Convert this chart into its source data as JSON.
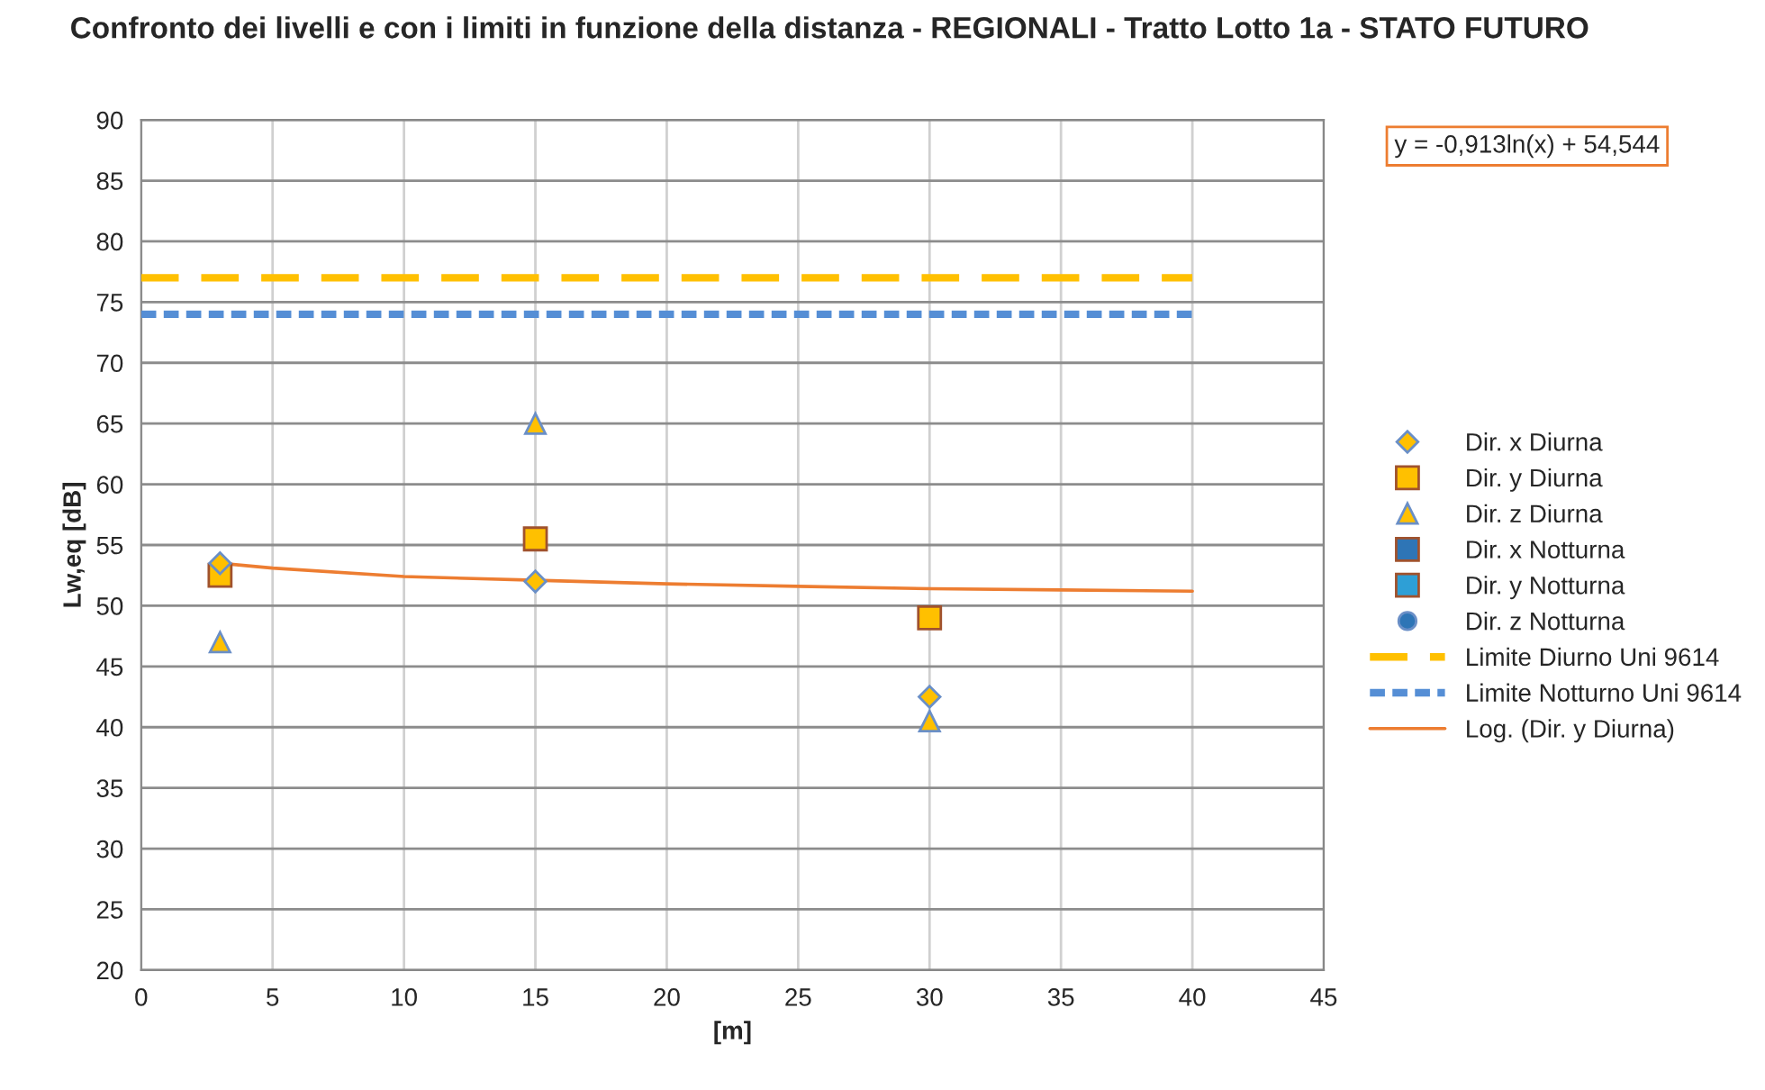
{
  "chart_data": {
    "type": "scatter",
    "title": "Confronto dei livelli e con i limiti in funzione della distanza - REGIONALI - Tratto Lotto 1a - STATO FUTURO",
    "xlabel": "[m]",
    "ylabel": "Lw,eq [dB]",
    "x": [
      3,
      15,
      30
    ],
    "series": [
      {
        "name": "Dir. x Diurna",
        "color": "#ffc000",
        "marker": "diamond",
        "values": [
          53.5,
          52,
          42.5
        ]
      },
      {
        "name": "Dir. y Diurna",
        "color": "#ffc000",
        "marker": "square",
        "values": [
          52.5,
          55.5,
          49
        ]
      },
      {
        "name": "Dir. z Diurna",
        "color": "#ffc000",
        "marker": "triangle",
        "values": [
          47,
          65,
          40.5
        ]
      },
      {
        "name": "Dir. x Notturna",
        "color": "#2e75b6",
        "marker": "square",
        "values": [
          null,
          null,
          null
        ]
      },
      {
        "name": "Dir. y Notturna",
        "color": "#2e9fd6",
        "marker": "square",
        "values": [
          null,
          null,
          null
        ]
      },
      {
        "name": "Dir. z Notturna",
        "color": "#2e75b6",
        "marker": "circle",
        "values": [
          null,
          null,
          null
        ]
      },
      {
        "name": "Limite Diurno Uni 9614",
        "type": "line",
        "color": "#ffc000",
        "line_style": "dashed",
        "marker": "none",
        "x": [
          0,
          40
        ],
        "values": [
          77,
          77
        ]
      },
      {
        "name": "Limite Notturno Uni 9614",
        "type": "line",
        "color": "#558ed5",
        "line_style": "dotted",
        "marker": "none",
        "x": [
          0,
          40
        ],
        "values": [
          74,
          74
        ]
      },
      {
        "name": "Log. (Dir. y Diurna)",
        "type": "line",
        "color": "#ed7d31",
        "line_style": "solid",
        "marker": "none",
        "x": [
          3,
          5,
          10,
          15,
          20,
          25,
          30,
          35,
          40
        ],
        "values": [
          53.5,
          53.1,
          52.4,
          52.1,
          51.8,
          51.6,
          51.4,
          51.3,
          51.2
        ]
      }
    ],
    "annotations": [
      "y = -0,913ln(x) + 54,544"
    ],
    "xlim": [
      0,
      45
    ],
    "xticks": [
      0,
      5,
      10,
      15,
      20,
      25,
      30,
      35,
      40,
      45
    ],
    "ylim": [
      20,
      90
    ],
    "yticks": [
      20,
      25,
      30,
      35,
      40,
      45,
      50,
      55,
      60,
      65,
      70,
      75,
      80,
      85,
      90
    ],
    "grid": true,
    "legend": "right"
  }
}
